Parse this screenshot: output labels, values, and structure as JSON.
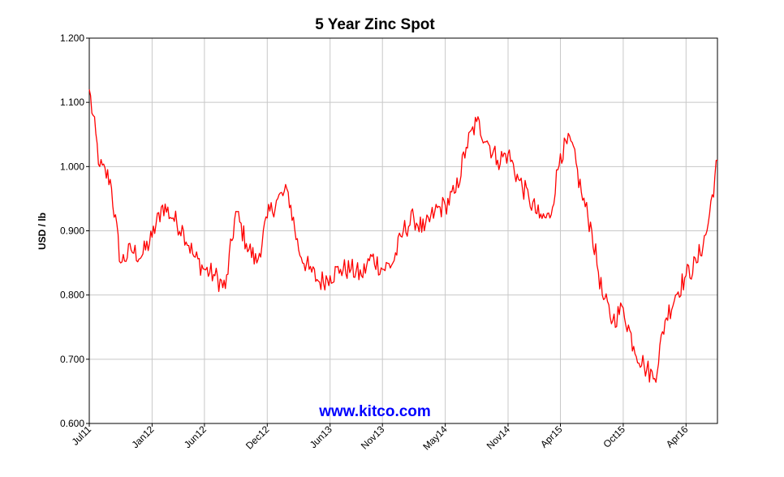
{
  "chart_data": {
    "type": "line",
    "title": "5 Year Zinc Spot",
    "ylabel": "USD / lb",
    "xlabel": "",
    "ylim": [
      0.6,
      1.2
    ],
    "y_ticks": [
      "0.600",
      "0.700",
      "0.800",
      "0.900",
      "1.000",
      "1.100",
      "1.200"
    ],
    "x_ticks": [
      "Jul11",
      "Jan12",
      "Jun12",
      "Dec12",
      "Jun13",
      "Nov13",
      "May14",
      "Nov14",
      "Apr15",
      "Oct15",
      "Apr16"
    ],
    "x_range": [
      "2011-07",
      "2016-07"
    ],
    "grid": true,
    "legend": "none",
    "watermark": "www.kitco.com",
    "colors": {
      "line": "#ff0000",
      "grid": "#c8c8c8",
      "axis": "#000000",
      "watermark": "#0000ff"
    },
    "series": [
      {
        "x": [
          "2011-07",
          "2011-08",
          "2011-09",
          "2011-10",
          "2011-11",
          "2011-12",
          "2012-01",
          "2012-02",
          "2012-03",
          "2012-04",
          "2012-05",
          "2012-06",
          "2012-07",
          "2012-08",
          "2012-09",
          "2012-10",
          "2012-11",
          "2012-12",
          "2013-01",
          "2013-02",
          "2013-03",
          "2013-04",
          "2013-05",
          "2013-06",
          "2013-07",
          "2013-08",
          "2013-09",
          "2013-10",
          "2013-11",
          "2013-12",
          "2014-01",
          "2014-02",
          "2014-03",
          "2014-04",
          "2014-05",
          "2014-06",
          "2014-07",
          "2014-08",
          "2014-09",
          "2014-10",
          "2014-11",
          "2014-12",
          "2015-01",
          "2015-02",
          "2015-03",
          "2015-04",
          "2015-05",
          "2015-06",
          "2015-07",
          "2015-08",
          "2015-09",
          "2015-10",
          "2015-11",
          "2015-12",
          "2016-01",
          "2016-02",
          "2016-03",
          "2016-04",
          "2016-05",
          "2016-06",
          "2016-07"
        ],
        "values": [
          1.12,
          1.0,
          0.98,
          0.85,
          0.87,
          0.86,
          0.89,
          0.94,
          0.92,
          0.9,
          0.86,
          0.84,
          0.83,
          0.81,
          0.93,
          0.88,
          0.85,
          0.92,
          0.95,
          0.96,
          0.87,
          0.84,
          0.82,
          0.83,
          0.84,
          0.84,
          0.83,
          0.86,
          0.84,
          0.85,
          0.9,
          0.92,
          0.9,
          0.93,
          0.94,
          0.96,
          1.03,
          1.07,
          1.04,
          1.01,
          1.02,
          0.98,
          0.95,
          0.92,
          0.92,
          1.02,
          1.04,
          0.96,
          0.9,
          0.8,
          0.76,
          0.78,
          0.72,
          0.69,
          0.67,
          0.76,
          0.8,
          0.83,
          0.85,
          0.9,
          1.01
        ]
      }
    ]
  }
}
